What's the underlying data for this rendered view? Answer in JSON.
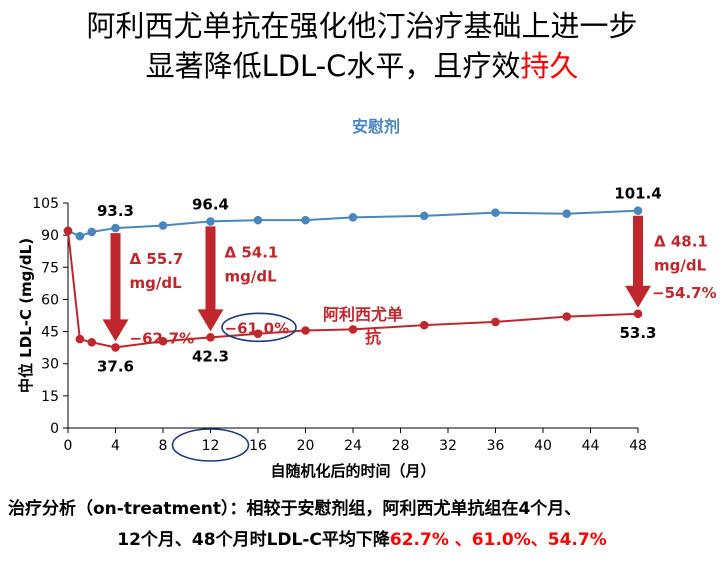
{
  "title": {
    "line1": "阿利西尤单抗在强化他汀治疗基础上进一步",
    "line2_main": "显著降低LDL-C水平，且疗效",
    "line2_highlight": "持久"
  },
  "conclusion": {
    "line1": "治疗分析（on-treatment）：相较于安慰剂组，阿利西尤单抗组在4个月、",
    "line2_prefix": "12个月、48个月时LDL-C平均下降",
    "pct1": "62.7%",
    "sep1": " 、",
    "pct2": "61.0%",
    "sep2": "、",
    "pct3": "54.7%"
  },
  "colors": {
    "placebo": "#4a86be",
    "alirocumab": "#c0272d",
    "arrow": "#c0272d",
    "circle": "#1f3a7a",
    "axis": "#000000",
    "highlight": "#ff0000"
  },
  "chart_data": {
    "type": "line",
    "xlabel": "自随机化后的时间（月）",
    "ylabel": "中位 LDL-C (mg/dL)",
    "xlim": [
      0,
      48
    ],
    "ylim": [
      0,
      105
    ],
    "xticks": [
      0,
      4,
      8,
      12,
      16,
      20,
      24,
      28,
      32,
      36,
      40,
      44,
      48
    ],
    "yticks": [
      0,
      15,
      30,
      45,
      60,
      75,
      90,
      105
    ],
    "series": [
      {
        "name": "安慰剂",
        "color": "#4a86be",
        "x": [
          0,
          1,
          2,
          4,
          8,
          12,
          16,
          20,
          24,
          30,
          36,
          42,
          48
        ],
        "y": [
          92,
          89.5,
          91.5,
          93.3,
          94.5,
          96.4,
          97,
          97,
          98.3,
          99,
          100.5,
          100,
          101.4
        ]
      },
      {
        "name": "阿利西尤单抗",
        "color": "#c0272d",
        "x": [
          0,
          1,
          2,
          4,
          8,
          12,
          16,
          20,
          24,
          30,
          36,
          42,
          48
        ],
        "y": [
          92,
          41.5,
          40,
          37.6,
          40.5,
          42.3,
          44,
          45.5,
          46,
          48,
          49.5,
          52,
          53.3
        ]
      }
    ],
    "value_labels": [
      {
        "x": 4,
        "y": 93.3,
        "text": "93.3",
        "pos": "above"
      },
      {
        "x": 12,
        "y": 96.4,
        "text": "96.4",
        "pos": "above"
      },
      {
        "x": 48,
        "y": 101.4,
        "text": "101.4",
        "pos": "above"
      },
      {
        "x": 4,
        "y": 37.6,
        "text": "37.6",
        "pos": "below"
      },
      {
        "x": 12,
        "y": 42.3,
        "text": "42.3",
        "pos": "below"
      },
      {
        "x": 48,
        "y": 53.3,
        "text": "53.3",
        "pos": "below"
      }
    ],
    "reductions": [
      {
        "x": 4,
        "from": 93.3,
        "to": 37.6,
        "delta_line1": "Δ 55.7",
        "delta_line2": "mg/dL",
        "pct": "−62.7%"
      },
      {
        "x": 12,
        "from": 96.4,
        "to": 42.3,
        "delta_line1": "Δ 54.1",
        "delta_line2": "mg/dL",
        "pct": "−61.0%"
      },
      {
        "x": 48,
        "from": 101.4,
        "to": 53.3,
        "delta_line1": "Δ 48.1",
        "delta_line2": "mg/dL",
        "pct": "−54.7%"
      }
    ],
    "circled": [
      "12",
      "−61.0%"
    ]
  }
}
